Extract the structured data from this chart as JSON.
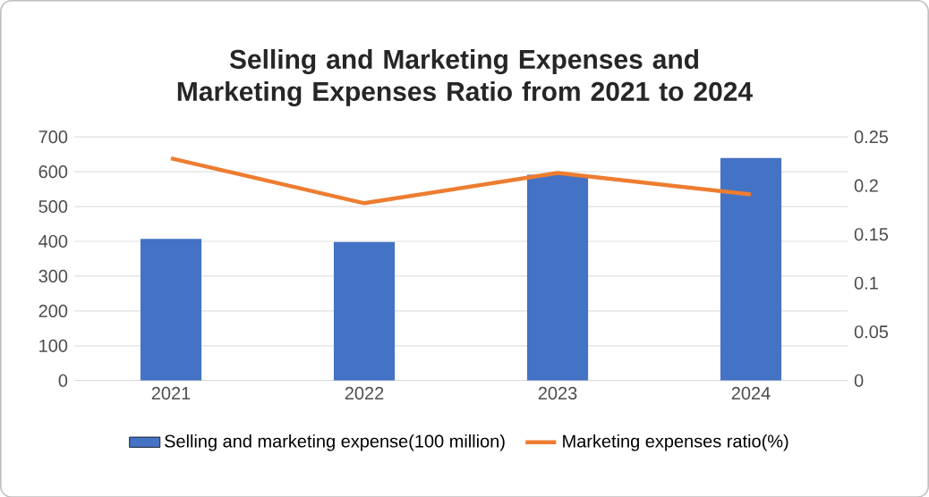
{
  "chart_data": {
    "type": "bar",
    "title": "Selling and Marketing Expenses and Marketing Expenses Ratio from 2021 to 2024",
    "categories": [
      "2021",
      "2022",
      "2023",
      "2024"
    ],
    "series": [
      {
        "name": "Selling and marketing expense(100 million)",
        "color": "#4472c4",
        "values": [
          407,
          398,
          591,
          640
        ]
      },
      {
        "name": "Marketing expenses ratio(%)",
        "type": "line",
        "axis": "y2",
        "color": "#ed7d31",
        "values": [
          0.228,
          0.182,
          0.213,
          0.191
        ]
      }
    ],
    "ylim": [
      0,
      700
    ],
    "yticks": [
      0,
      100,
      200,
      300,
      400,
      500,
      600,
      700
    ],
    "y2lim": [
      0,
      0.25
    ],
    "y2ticks": [
      0,
      0.05,
      0.1,
      0.15,
      0.2,
      0.25
    ],
    "grid": "y",
    "legend": "bottom",
    "marker": "none"
  }
}
